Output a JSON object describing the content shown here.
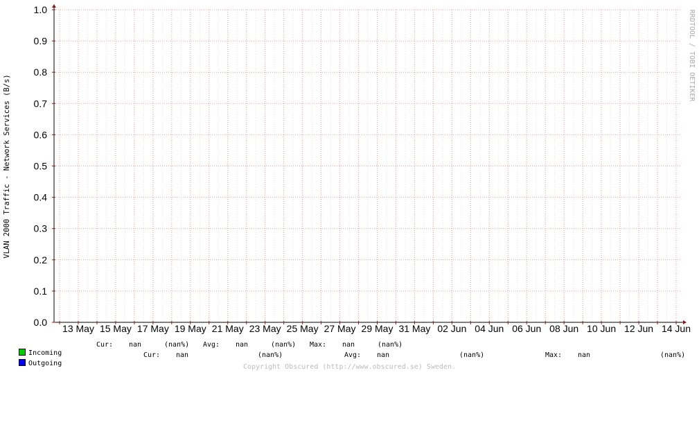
{
  "chart_data": {
    "type": "line",
    "ylabel": "VLAN 2000 Traffic - Network Services (B/s)",
    "vertical_label": "RRDTOOL / TOBI OETIKER",
    "y_ticks": [
      "0.0",
      "0.1",
      "0.2",
      "0.3",
      "0.4",
      "0.5",
      "0.6",
      "0.7",
      "0.8",
      "0.9",
      "1.0"
    ],
    "ylim": [
      0,
      1
    ],
    "x_ticks": [
      "13 May",
      "15 May",
      "17 May",
      "19 May",
      "21 May",
      "23 May",
      "25 May",
      "27 May",
      "29 May",
      "31 May",
      "02 Jun",
      "04 Jun",
      "06 Jun",
      "08 Jun",
      "10 Jun",
      "12 Jun",
      "14 Jun"
    ],
    "grid": true,
    "series": [
      {
        "name": "Incoming",
        "color": "#00cc00",
        "values": []
      },
      {
        "name": "Outgoing",
        "color": "#0000ff",
        "values": []
      }
    ]
  },
  "legend": [
    {
      "name": "Incoming",
      "color": "#00cc00",
      "cur_label": "Cur:",
      "cur": "nan",
      "cur_pct": "(nan%)",
      "avg_label": "Avg:",
      "avg": "nan",
      "avg_pct": "(nan%)",
      "max_label": "Max:",
      "max": "nan",
      "max_pct": "(nan%)"
    },
    {
      "name": "Outgoing",
      "color": "#0000ff",
      "cur_label": "Cur:",
      "cur": "nan",
      "cur_pct": "(nan%)",
      "avg_label": "Avg:",
      "avg": "nan",
      "avg_pct": "(nan%)",
      "max_label": "Max:",
      "max": "nan",
      "max_pct": "(nan%)"
    }
  ],
  "footer": "Copyright Obscured (http://www.obscured.se) Sweden."
}
